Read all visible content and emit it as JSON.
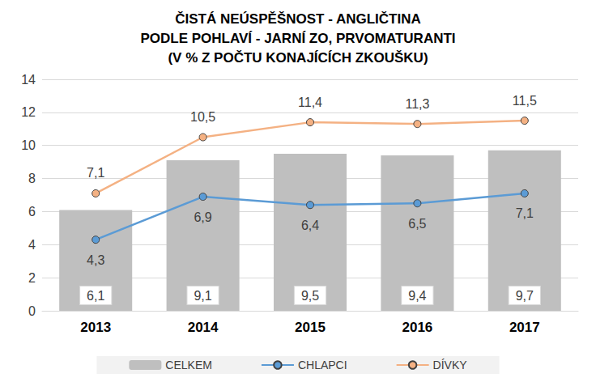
{
  "chart_data": {
    "type": "bar",
    "title": "ČISTÁ NEÚSPĚŠNOST - ANGLIČTINA\nPODLE POHLAVÍ - JARNÍ ZO, PRVOMATURANTI\n(V % Z POČTU KONAJÍCÍCH ZKOUŠKU)",
    "categories": [
      "2013",
      "2014",
      "2015",
      "2016",
      "2017"
    ],
    "series": [
      {
        "name": "CELKEM",
        "type": "bar",
        "color": "#bfbfbf",
        "values": [
          6.1,
          9.1,
          9.5,
          9.4,
          9.7
        ],
        "value_labels": [
          "6,1",
          "9,1",
          "9,5",
          "9,4",
          "9,7"
        ]
      },
      {
        "name": "CHLAPCI",
        "type": "line",
        "color": "#5b9bd5",
        "marker": "circle",
        "values": [
          4.3,
          6.9,
          6.4,
          6.5,
          7.1
        ],
        "value_labels": [
          "4,3",
          "6,9",
          "6,4",
          "6,5",
          "7,1"
        ]
      },
      {
        "name": "DÍVKY",
        "type": "line",
        "color": "#f4b183",
        "marker": "circle",
        "values": [
          7.1,
          10.5,
          11.4,
          11.3,
          11.5
        ],
        "value_labels": [
          "7,1",
          "10,5",
          "11,4",
          "11,3",
          "11,5"
        ]
      }
    ],
    "ylim": [
      0,
      14
    ],
    "yticks": [
      0,
      2,
      4,
      6,
      8,
      10,
      12,
      14
    ],
    "grid": true,
    "legend": "bottom",
    "data_labels": true
  }
}
